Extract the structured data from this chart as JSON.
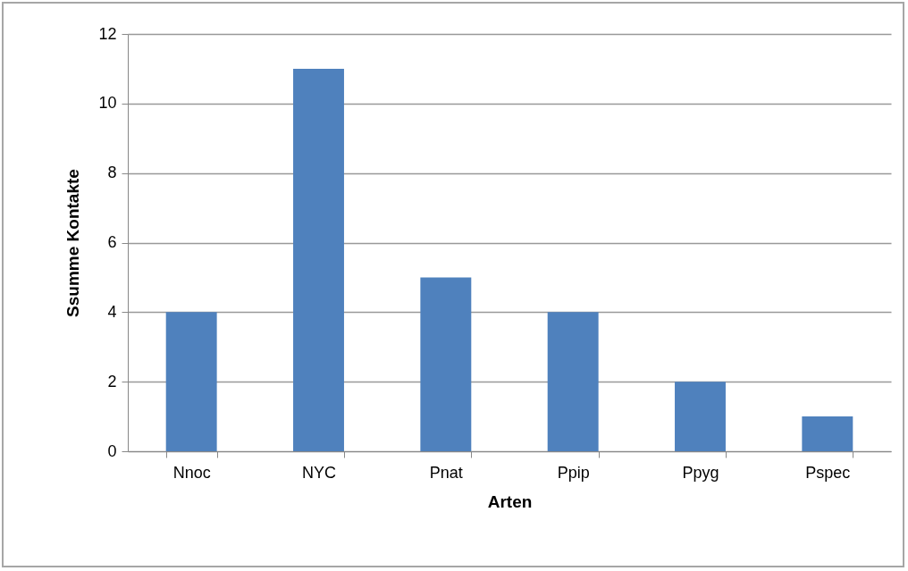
{
  "chart_data": {
    "type": "bar",
    "xlabel": "Arten",
    "ylabel": "Ssumme Kontakte",
    "categories": [
      "Nnoc",
      "NYC",
      "Pnat",
      "Ppip",
      "Ppyg",
      "Pspec"
    ],
    "values": [
      4,
      11,
      5,
      4,
      2,
      1
    ],
    "color": "#4f81bd",
    "ylim": [
      0,
      12
    ],
    "yticks": [
      0,
      2,
      4,
      6,
      8,
      10,
      12
    ],
    "grid": "y"
  }
}
